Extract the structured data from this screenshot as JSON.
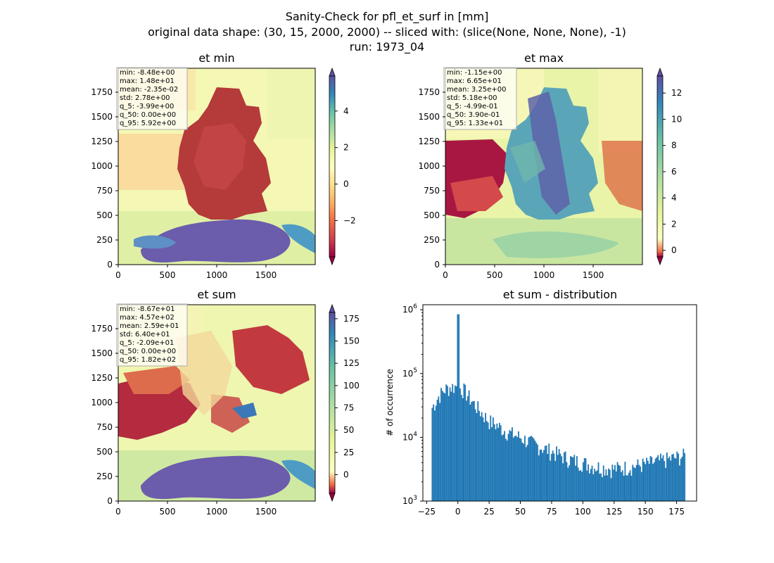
{
  "suptitle": {
    "line1": "Sanity-Check for pfl_et_surf in [mm]",
    "line2": "original data shape: (30, 15, 2000, 2000) -- sliced with: (slice(None, None, None), -1)",
    "line3": "run: 1973_04"
  },
  "chart_data": [
    {
      "type": "heatmap",
      "title": "et min",
      "xticks": [
        "0",
        "500",
        "1000",
        "1500"
      ],
      "yticks": [
        "0",
        "250",
        "500",
        "750",
        "1000",
        "1250",
        "1500",
        "1750"
      ],
      "xlim": [
        0,
        2000
      ],
      "ylim": [
        0,
        2000
      ],
      "colormap": "Spectral",
      "colorbar": {
        "range": [
          -3.99,
          5.92
        ],
        "ticks": [
          "−2",
          "0",
          "2",
          "4"
        ],
        "tick_values": [
          -2,
          0,
          2,
          4
        ],
        "extend": "both"
      },
      "stats": [
        "min: -8.48e+00",
        "max: 1.48e+01",
        "mean: -2.35e-02",
        "std: 2.78e+00",
        "q_5: -3.99e+00",
        "q_50: 0.00e+00",
        "q_95: 5.92e+00"
      ]
    },
    {
      "type": "heatmap",
      "title": "et max",
      "xticks": [
        "0",
        "500",
        "1000",
        "1500"
      ],
      "yticks": [
        "0",
        "250",
        "500",
        "750",
        "1000",
        "1250",
        "1500",
        "1750"
      ],
      "xlim": [
        0,
        2000
      ],
      "ylim": [
        0,
        2000
      ],
      "colormap": "Spectral",
      "colorbar": {
        "range": [
          -0.499,
          13.3
        ],
        "ticks": [
          "0",
          "2",
          "4",
          "6",
          "8",
          "10",
          "12"
        ],
        "tick_values": [
          0,
          2,
          4,
          6,
          8,
          10,
          12
        ],
        "extend": "both"
      },
      "stats": [
        "min: -1.15e+00",
        "max: 6.65e+01",
        "mean: 3.25e+00",
        "std: 5.18e+00",
        "q_5: -4.99e-01",
        "q_50: 3.90e-01",
        "q_95: 1.33e+01"
      ]
    },
    {
      "type": "heatmap",
      "title": "et sum",
      "xticks": [
        "0",
        "500",
        "1000",
        "1500"
      ],
      "yticks": [
        "0",
        "250",
        "500",
        "750",
        "1000",
        "1250",
        "1500",
        "1750"
      ],
      "xlim": [
        0,
        2000
      ],
      "ylim": [
        0,
        2000
      ],
      "colormap": "Spectral",
      "colorbar": {
        "range": [
          -20.9,
          182
        ],
        "ticks": [
          "0",
          "25",
          "50",
          "75",
          "100",
          "125",
          "150",
          "175"
        ],
        "tick_values": [
          0,
          25,
          50,
          75,
          100,
          125,
          150,
          175
        ],
        "extend": "both"
      },
      "stats": [
        "min: -8.67e+01",
        "max: 4.57e+02",
        "mean: 2.59e+01",
        "std: 6.40e+01",
        "q_5: -2.09e+01",
        "q_50: 0.00e+00",
        "q_95: 1.82e+02"
      ]
    },
    {
      "type": "bar",
      "title": "et sum - distribution",
      "ylabel": "# of occurrence",
      "xlabel": "",
      "yscale": "log",
      "xlim": [
        -28,
        191
      ],
      "ylim": [
        1000,
        1200000
      ],
      "xticks": [
        "−25",
        "0",
        "25",
        "50",
        "75",
        "100",
        "125",
        "150",
        "175"
      ],
      "xtick_values": [
        -25,
        0,
        25,
        50,
        75,
        100,
        125,
        150,
        175
      ],
      "yticks": [
        1000,
        10000,
        100000,
        1000000
      ],
      "color": "#1f77b4",
      "bin_range": [
        -21,
        182
      ],
      "histogram_envelope": [
        {
          "x": -21,
          "y": 28000
        },
        {
          "x": -15,
          "y": 45000
        },
        {
          "x": -10,
          "y": 57000
        },
        {
          "x": -5,
          "y": 62000
        },
        {
          "x": -1,
          "y": 63000
        },
        {
          "x": 0,
          "y": 850000
        },
        {
          "x": 1,
          "y": 60000
        },
        {
          "x": 5,
          "y": 55000
        },
        {
          "x": 10,
          "y": 40000
        },
        {
          "x": 15,
          "y": 30000
        },
        {
          "x": 20,
          "y": 23000
        },
        {
          "x": 25,
          "y": 18000
        },
        {
          "x": 30,
          "y": 16000
        },
        {
          "x": 40,
          "y": 12000
        },
        {
          "x": 50,
          "y": 10000
        },
        {
          "x": 60,
          "y": 8000
        },
        {
          "x": 75,
          "y": 6000
        },
        {
          "x": 90,
          "y": 4500
        },
        {
          "x": 100,
          "y": 4000
        },
        {
          "x": 110,
          "y": 3500
        },
        {
          "x": 125,
          "y": 3200
        },
        {
          "x": 140,
          "y": 3500
        },
        {
          "x": 150,
          "y": 3800
        },
        {
          "x": 160,
          "y": 4200
        },
        {
          "x": 170,
          "y": 4600
        },
        {
          "x": 182,
          "y": 5200
        }
      ]
    }
  ]
}
